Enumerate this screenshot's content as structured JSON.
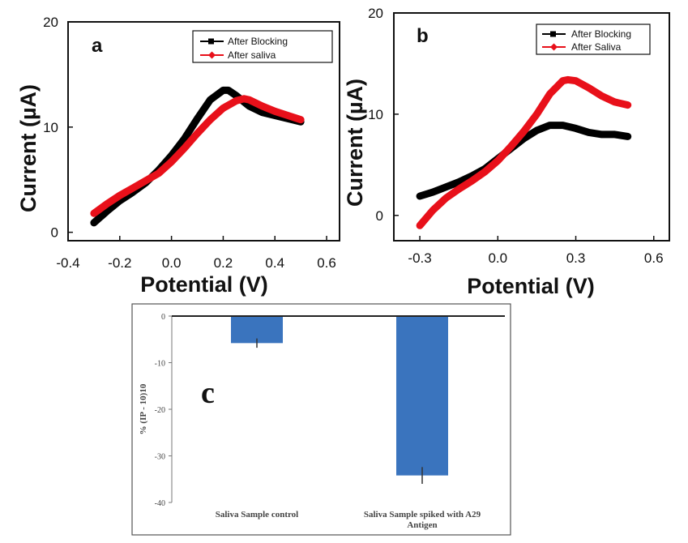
{
  "chart_data": [
    {
      "panel": "a",
      "type": "line",
      "xlabel": "Potential (V)",
      "ylabel": "Current (µA)",
      "xlim": [
        -0.4,
        0.65
      ],
      "ylim": [
        -0.8,
        20
      ],
      "xticks": [
        -0.4,
        -0.2,
        0.0,
        0.2,
        0.4,
        0.6
      ],
      "xtick_labels": [
        "-0.4",
        "-0.2",
        "0.0",
        "0.2",
        "0.4",
        "0.6"
      ],
      "yticks": [
        0,
        10,
        20
      ],
      "ytick_labels": [
        "0",
        "10",
        "20"
      ],
      "legend_position": "top-right",
      "series": [
        {
          "name": "After Blocking",
          "color": "#000000",
          "marker": "square",
          "x": [
            -0.3,
            -0.25,
            -0.2,
            -0.15,
            -0.1,
            -0.05,
            0.0,
            0.05,
            0.1,
            0.15,
            0.2,
            0.22,
            0.25,
            0.3,
            0.35,
            0.4,
            0.45,
            0.5
          ],
          "y": [
            0.9,
            2.0,
            3.0,
            3.8,
            4.7,
            5.9,
            7.3,
            8.9,
            10.8,
            12.6,
            13.5,
            13.5,
            13.0,
            12.0,
            11.4,
            11.1,
            10.8,
            10.5
          ]
        },
        {
          "name": "After saliva",
          "color": "#e8101a",
          "marker": "diamond",
          "x": [
            -0.3,
            -0.25,
            -0.2,
            -0.15,
            -0.1,
            -0.05,
            0.0,
            0.05,
            0.1,
            0.15,
            0.2,
            0.25,
            0.28,
            0.3,
            0.35,
            0.4,
            0.45,
            0.5
          ],
          "y": [
            1.8,
            2.7,
            3.5,
            4.2,
            4.9,
            5.6,
            6.7,
            8.0,
            9.4,
            10.7,
            11.8,
            12.5,
            12.7,
            12.6,
            12.0,
            11.5,
            11.1,
            10.7
          ]
        }
      ]
    },
    {
      "panel": "b",
      "type": "line",
      "xlabel": "Potential (V)",
      "ylabel": "Current (µA)",
      "xlim": [
        -0.4,
        0.66
      ],
      "ylim": [
        -2.5,
        20
      ],
      "xticks": [
        -0.3,
        0.0,
        0.3,
        0.6
      ],
      "xtick_labels": [
        "-0.3",
        "0.0",
        "0.3",
        "0.6"
      ],
      "yticks": [
        0,
        10,
        20
      ],
      "ytick_labels": [
        "0",
        "10",
        "20"
      ],
      "legend_position": "top-right",
      "series": [
        {
          "name": "After Blocking",
          "color": "#000000",
          "marker": "square",
          "x": [
            -0.3,
            -0.25,
            -0.2,
            -0.15,
            -0.1,
            -0.05,
            0.0,
            0.05,
            0.1,
            0.15,
            0.2,
            0.25,
            0.3,
            0.35,
            0.4,
            0.45,
            0.5
          ],
          "y": [
            1.9,
            2.3,
            2.8,
            3.3,
            3.9,
            4.6,
            5.6,
            6.6,
            7.6,
            8.4,
            8.9,
            8.9,
            8.6,
            8.2,
            8.0,
            8.0,
            7.8
          ]
        },
        {
          "name": "After Saliva",
          "color": "#e8101a",
          "marker": "diamond",
          "x": [
            -0.3,
            -0.25,
            -0.2,
            -0.15,
            -0.1,
            -0.05,
            0.0,
            0.05,
            0.1,
            0.15,
            0.2,
            0.25,
            0.27,
            0.3,
            0.35,
            0.4,
            0.45,
            0.5
          ],
          "y": [
            -1.0,
            0.5,
            1.7,
            2.6,
            3.4,
            4.3,
            5.4,
            6.8,
            8.3,
            10.0,
            12.0,
            13.3,
            13.4,
            13.3,
            12.6,
            11.8,
            11.2,
            10.9
          ]
        }
      ]
    },
    {
      "panel": "c",
      "type": "bar",
      "ylabel": "% (IP - 10)10",
      "ylim": [
        -40,
        0
      ],
      "yticks": [
        0,
        -10,
        -20,
        -30,
        -40
      ],
      "ytick_labels": [
        "0",
        "-10",
        "-20",
        "-30",
        "-40"
      ],
      "categories": [
        "Saliva Sample control",
        "Saliva Sample spiked with A29 Antigen"
      ],
      "category_lines": [
        [
          "Saliva Sample control"
        ],
        [
          "Saliva Sample spiked with A29",
          "Antigen"
        ]
      ],
      "values": [
        -5.8,
        -34.2
      ],
      "errors": [
        1.0,
        1.8
      ],
      "bar_color": "#3a74be"
    }
  ]
}
